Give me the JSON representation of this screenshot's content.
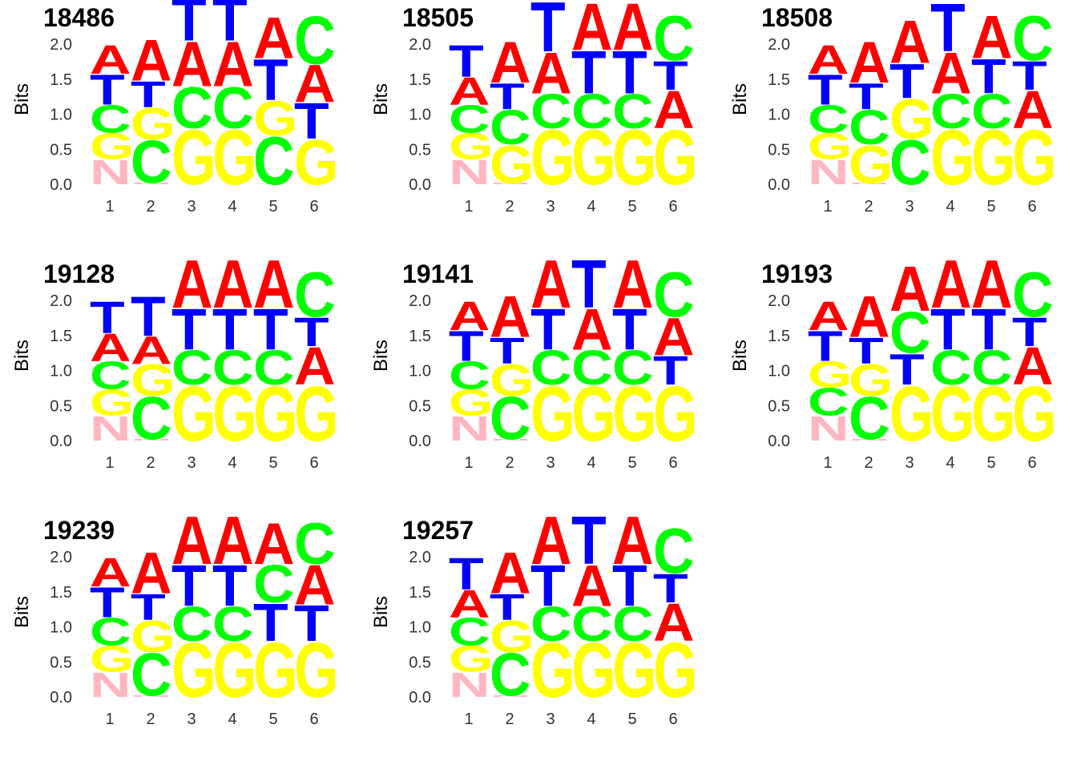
{
  "chart_data": [
    {
      "type": "sequence_logo",
      "title": "18486",
      "ylabel": "Bits",
      "ylim": [
        0,
        2
      ],
      "yticks": [
        "0.0",
        "0.5",
        "1.0",
        "1.5",
        "2.0"
      ],
      "xticks": [
        "1",
        "2",
        "3",
        "4",
        "5",
        "6"
      ],
      "positions": [
        [
          {
            "letter": "N",
            "bits": 0.36
          },
          {
            "letter": "G",
            "bits": 0.38
          },
          {
            "letter": "C",
            "bits": 0.4
          },
          {
            "letter": "T",
            "bits": 0.44
          },
          {
            "letter": "A",
            "bits": 0.42
          }
        ],
        [
          {
            "letter": "N",
            "bits": 0.02
          },
          {
            "letter": "C",
            "bits": 0.62
          },
          {
            "letter": "G",
            "bits": 0.46
          },
          {
            "letter": "T",
            "bits": 0.38
          },
          {
            "letter": "A",
            "bits": 0.6
          }
        ],
        [
          {
            "letter": "G",
            "bits": 0.8
          },
          {
            "letter": "C",
            "bits": 0.6
          },
          {
            "letter": "A",
            "bits": 0.65
          },
          {
            "letter": "T",
            "bits": 0.62
          }
        ],
        [
          {
            "letter": "G",
            "bits": 0.8
          },
          {
            "letter": "C",
            "bits": 0.6
          },
          {
            "letter": "A",
            "bits": 0.65
          },
          {
            "letter": "T",
            "bits": 0.62
          }
        ],
        [
          {
            "letter": "C",
            "bits": 0.7
          },
          {
            "letter": "G",
            "bits": 0.5
          },
          {
            "letter": "T",
            "bits": 0.6
          },
          {
            "letter": "A",
            "bits": 0.6
          }
        ],
        [
          {
            "letter": "G",
            "bits": 0.65
          },
          {
            "letter": "T",
            "bits": 0.52
          },
          {
            "letter": "A",
            "bits": 0.55
          },
          {
            "letter": "C",
            "bits": 0.7
          }
        ]
      ]
    },
    {
      "type": "sequence_logo",
      "title": "18505",
      "ylabel": "Bits",
      "ylim": [
        0,
        2
      ],
      "yticks": [
        "0.0",
        "0.5",
        "1.0",
        "1.5",
        "2.0"
      ],
      "xticks": [
        "1",
        "2",
        "3",
        "4",
        "5",
        "6"
      ],
      "positions": [
        [
          {
            "letter": "N",
            "bits": 0.36
          },
          {
            "letter": "G",
            "bits": 0.38
          },
          {
            "letter": "C",
            "bits": 0.4
          },
          {
            "letter": "A",
            "bits": 0.4
          },
          {
            "letter": "T",
            "bits": 0.46
          }
        ],
        [
          {
            "letter": "N",
            "bits": 0.02
          },
          {
            "letter": "G",
            "bits": 0.55
          },
          {
            "letter": "C",
            "bits": 0.5
          },
          {
            "letter": "T",
            "bits": 0.38
          },
          {
            "letter": "A",
            "bits": 0.6
          }
        ],
        [
          {
            "letter": "G",
            "bits": 0.8
          },
          {
            "letter": "C",
            "bits": 0.5
          },
          {
            "letter": "A",
            "bits": 0.6
          },
          {
            "letter": "T",
            "bits": 0.72
          }
        ],
        [
          {
            "letter": "G",
            "bits": 0.8
          },
          {
            "letter": "C",
            "bits": 0.5
          },
          {
            "letter": "T",
            "bits": 0.62
          },
          {
            "letter": "A",
            "bits": 0.68
          }
        ],
        [
          {
            "letter": "G",
            "bits": 0.8
          },
          {
            "letter": "C",
            "bits": 0.5
          },
          {
            "letter": "T",
            "bits": 0.62
          },
          {
            "letter": "A",
            "bits": 0.68
          }
        ],
        [
          {
            "letter": "G",
            "bits": 0.8
          },
          {
            "letter": "A",
            "bits": 0.55
          },
          {
            "letter": "T",
            "bits": 0.42
          },
          {
            "letter": "C",
            "bits": 0.65
          }
        ]
      ]
    },
    {
      "type": "sequence_logo",
      "title": "18508",
      "ylabel": "Bits",
      "ylim": [
        0,
        2
      ],
      "yticks": [
        "0.0",
        "0.5",
        "1.0",
        "1.5",
        "2.0"
      ],
      "xticks": [
        "1",
        "2",
        "3",
        "4",
        "5",
        "6"
      ],
      "positions": [
        [
          {
            "letter": "N",
            "bits": 0.36
          },
          {
            "letter": "G",
            "bits": 0.38
          },
          {
            "letter": "C",
            "bits": 0.4
          },
          {
            "letter": "T",
            "bits": 0.44
          },
          {
            "letter": "A",
            "bits": 0.42
          }
        ],
        [
          {
            "letter": "N",
            "bits": 0.02
          },
          {
            "letter": "G",
            "bits": 0.55
          },
          {
            "letter": "C",
            "bits": 0.5
          },
          {
            "letter": "T",
            "bits": 0.38
          },
          {
            "letter": "A",
            "bits": 0.6
          }
        ],
        [
          {
            "letter": "C",
            "bits": 0.65
          },
          {
            "letter": "G",
            "bits": 0.58
          },
          {
            "letter": "T",
            "bits": 0.5
          },
          {
            "letter": "A",
            "bits": 0.62
          }
        ],
        [
          {
            "letter": "G",
            "bits": 0.8
          },
          {
            "letter": "C",
            "bits": 0.5
          },
          {
            "letter": "A",
            "bits": 0.6
          },
          {
            "letter": "T",
            "bits": 0.7
          }
        ],
        [
          {
            "letter": "G",
            "bits": 0.8
          },
          {
            "letter": "C",
            "bits": 0.5
          },
          {
            "letter": "T",
            "bits": 0.5
          },
          {
            "letter": "A",
            "bits": 0.62
          }
        ],
        [
          {
            "letter": "G",
            "bits": 0.8
          },
          {
            "letter": "A",
            "bits": 0.55
          },
          {
            "letter": "T",
            "bits": 0.42
          },
          {
            "letter": "C",
            "bits": 0.65
          }
        ]
      ]
    },
    {
      "type": "sequence_logo",
      "title": "19128",
      "ylabel": "Bits",
      "ylim": [
        0,
        2
      ],
      "yticks": [
        "0.0",
        "0.5",
        "1.0",
        "1.5",
        "2.0"
      ],
      "xticks": [
        "1",
        "2",
        "3",
        "4",
        "5",
        "6"
      ],
      "positions": [
        [
          {
            "letter": "N",
            "bits": 0.36
          },
          {
            "letter": "G",
            "bits": 0.38
          },
          {
            "letter": "C",
            "bits": 0.4
          },
          {
            "letter": "A",
            "bits": 0.4
          },
          {
            "letter": "T",
            "bits": 0.46
          }
        ],
        [
          {
            "letter": "N",
            "bits": 0.02
          },
          {
            "letter": "C",
            "bits": 0.62
          },
          {
            "letter": "G",
            "bits": 0.46
          },
          {
            "letter": "A",
            "bits": 0.4
          },
          {
            "letter": "T",
            "bits": 0.58
          }
        ],
        [
          {
            "letter": "G",
            "bits": 0.8
          },
          {
            "letter": "C",
            "bits": 0.5
          },
          {
            "letter": "T",
            "bits": 0.6
          },
          {
            "letter": "A",
            "bits": 0.7
          }
        ],
        [
          {
            "letter": "G",
            "bits": 0.8
          },
          {
            "letter": "C",
            "bits": 0.5
          },
          {
            "letter": "T",
            "bits": 0.6
          },
          {
            "letter": "A",
            "bits": 0.7
          }
        ],
        [
          {
            "letter": "G",
            "bits": 0.8
          },
          {
            "letter": "C",
            "bits": 0.5
          },
          {
            "letter": "T",
            "bits": 0.6
          },
          {
            "letter": "A",
            "bits": 0.7
          }
        ],
        [
          {
            "letter": "G",
            "bits": 0.8
          },
          {
            "letter": "A",
            "bits": 0.55
          },
          {
            "letter": "T",
            "bits": 0.42
          },
          {
            "letter": "C",
            "bits": 0.65
          }
        ]
      ]
    },
    {
      "type": "sequence_logo",
      "title": "19141",
      "ylabel": "Bits",
      "ylim": [
        0,
        2
      ],
      "yticks": [
        "0.0",
        "0.5",
        "1.0",
        "1.5",
        "2.0"
      ],
      "xticks": [
        "1",
        "2",
        "3",
        "4",
        "5",
        "6"
      ],
      "positions": [
        [
          {
            "letter": "N",
            "bits": 0.36
          },
          {
            "letter": "G",
            "bits": 0.38
          },
          {
            "letter": "C",
            "bits": 0.4
          },
          {
            "letter": "T",
            "bits": 0.44
          },
          {
            "letter": "A",
            "bits": 0.42
          }
        ],
        [
          {
            "letter": "N",
            "bits": 0.02
          },
          {
            "letter": "C",
            "bits": 0.62
          },
          {
            "letter": "G",
            "bits": 0.46
          },
          {
            "letter": "T",
            "bits": 0.38
          },
          {
            "letter": "A",
            "bits": 0.6
          }
        ],
        [
          {
            "letter": "G",
            "bits": 0.8
          },
          {
            "letter": "C",
            "bits": 0.5
          },
          {
            "letter": "T",
            "bits": 0.6
          },
          {
            "letter": "A",
            "bits": 0.7
          }
        ],
        [
          {
            "letter": "G",
            "bits": 0.8
          },
          {
            "letter": "C",
            "bits": 0.5
          },
          {
            "letter": "A",
            "bits": 0.6
          },
          {
            "letter": "T",
            "bits": 0.7
          }
        ],
        [
          {
            "letter": "G",
            "bits": 0.8
          },
          {
            "letter": "C",
            "bits": 0.5
          },
          {
            "letter": "T",
            "bits": 0.6
          },
          {
            "letter": "A",
            "bits": 0.7
          }
        ],
        [
          {
            "letter": "G",
            "bits": 0.8
          },
          {
            "letter": "T",
            "bits": 0.42
          },
          {
            "letter": "A",
            "bits": 0.55
          },
          {
            "letter": "C",
            "bits": 0.65
          }
        ]
      ]
    },
    {
      "type": "sequence_logo",
      "title": "19193",
      "ylabel": "Bits",
      "ylim": [
        0,
        2
      ],
      "yticks": [
        "0.0",
        "0.5",
        "1.0",
        "1.5",
        "2.0"
      ],
      "xticks": [
        "1",
        "2",
        "3",
        "4",
        "5",
        "6"
      ],
      "positions": [
        [
          {
            "letter": "N",
            "bits": 0.36
          },
          {
            "letter": "C",
            "bits": 0.4
          },
          {
            "letter": "G",
            "bits": 0.38
          },
          {
            "letter": "T",
            "bits": 0.44
          },
          {
            "letter": "A",
            "bits": 0.42
          }
        ],
        [
          {
            "letter": "N",
            "bits": 0.02
          },
          {
            "letter": "C",
            "bits": 0.62
          },
          {
            "letter": "G",
            "bits": 0.46
          },
          {
            "letter": "T",
            "bits": 0.38
          },
          {
            "letter": "A",
            "bits": 0.6
          }
        ],
        [
          {
            "letter": "G",
            "bits": 0.8
          },
          {
            "letter": "T",
            "bits": 0.45
          },
          {
            "letter": "C",
            "bits": 0.6
          },
          {
            "letter": "A",
            "bits": 0.65
          }
        ],
        [
          {
            "letter": "G",
            "bits": 0.8
          },
          {
            "letter": "C",
            "bits": 0.5
          },
          {
            "letter": "T",
            "bits": 0.6
          },
          {
            "letter": "A",
            "bits": 0.7
          }
        ],
        [
          {
            "letter": "G",
            "bits": 0.8
          },
          {
            "letter": "C",
            "bits": 0.5
          },
          {
            "letter": "T",
            "bits": 0.6
          },
          {
            "letter": "A",
            "bits": 0.7
          }
        ],
        [
          {
            "letter": "G",
            "bits": 0.8
          },
          {
            "letter": "A",
            "bits": 0.55
          },
          {
            "letter": "T",
            "bits": 0.42
          },
          {
            "letter": "C",
            "bits": 0.65
          }
        ]
      ]
    },
    {
      "type": "sequence_logo",
      "title": "19239",
      "ylabel": "Bits",
      "ylim": [
        0,
        2
      ],
      "yticks": [
        "0.0",
        "0.5",
        "1.0",
        "1.5",
        "2.0"
      ],
      "xticks": [
        "1",
        "2",
        "3",
        "4",
        "5",
        "6"
      ],
      "positions": [
        [
          {
            "letter": "N",
            "bits": 0.36
          },
          {
            "letter": "G",
            "bits": 0.38
          },
          {
            "letter": "C",
            "bits": 0.4
          },
          {
            "letter": "T",
            "bits": 0.44
          },
          {
            "letter": "A",
            "bits": 0.42
          }
        ],
        [
          {
            "letter": "N",
            "bits": 0.02
          },
          {
            "letter": "C",
            "bits": 0.62
          },
          {
            "letter": "G",
            "bits": 0.46
          },
          {
            "letter": "T",
            "bits": 0.38
          },
          {
            "letter": "A",
            "bits": 0.6
          }
        ],
        [
          {
            "letter": "G",
            "bits": 0.8
          },
          {
            "letter": "C",
            "bits": 0.5
          },
          {
            "letter": "T",
            "bits": 0.6
          },
          {
            "letter": "A",
            "bits": 0.7
          }
        ],
        [
          {
            "letter": "G",
            "bits": 0.8
          },
          {
            "letter": "C",
            "bits": 0.5
          },
          {
            "letter": "T",
            "bits": 0.6
          },
          {
            "letter": "A",
            "bits": 0.7
          }
        ],
        [
          {
            "letter": "G",
            "bits": 0.8
          },
          {
            "letter": "T",
            "bits": 0.55
          },
          {
            "letter": "C",
            "bits": 0.55
          },
          {
            "letter": "A",
            "bits": 0.6
          }
        ],
        [
          {
            "letter": "G",
            "bits": 0.8
          },
          {
            "letter": "T",
            "bits": 0.52
          },
          {
            "letter": "A",
            "bits": 0.58
          },
          {
            "letter": "C",
            "bits": 0.6
          }
        ]
      ]
    },
    {
      "type": "sequence_logo",
      "title": "19257",
      "ylabel": "Bits",
      "ylim": [
        0,
        2
      ],
      "yticks": [
        "0.0",
        "0.5",
        "1.0",
        "1.5",
        "2.0"
      ],
      "xticks": [
        "1",
        "2",
        "3",
        "4",
        "5",
        "6"
      ],
      "positions": [
        [
          {
            "letter": "N",
            "bits": 0.36
          },
          {
            "letter": "G",
            "bits": 0.38
          },
          {
            "letter": "C",
            "bits": 0.4
          },
          {
            "letter": "A",
            "bits": 0.4
          },
          {
            "letter": "T",
            "bits": 0.46
          }
        ],
        [
          {
            "letter": "N",
            "bits": 0.02
          },
          {
            "letter": "C",
            "bits": 0.62
          },
          {
            "letter": "G",
            "bits": 0.46
          },
          {
            "letter": "T",
            "bits": 0.38
          },
          {
            "letter": "A",
            "bits": 0.6
          }
        ],
        [
          {
            "letter": "G",
            "bits": 0.8
          },
          {
            "letter": "C",
            "bits": 0.5
          },
          {
            "letter": "T",
            "bits": 0.6
          },
          {
            "letter": "A",
            "bits": 0.7
          }
        ],
        [
          {
            "letter": "G",
            "bits": 0.8
          },
          {
            "letter": "C",
            "bits": 0.5
          },
          {
            "letter": "A",
            "bits": 0.6
          },
          {
            "letter": "T",
            "bits": 0.7
          }
        ],
        [
          {
            "letter": "G",
            "bits": 0.8
          },
          {
            "letter": "C",
            "bits": 0.5
          },
          {
            "letter": "T",
            "bits": 0.6
          },
          {
            "letter": "A",
            "bits": 0.7
          }
        ],
        [
          {
            "letter": "G",
            "bits": 0.8
          },
          {
            "letter": "A",
            "bits": 0.55
          },
          {
            "letter": "T",
            "bits": 0.42
          },
          {
            "letter": "C",
            "bits": 0.65
          }
        ]
      ]
    }
  ],
  "colors": {
    "A": "#ff0000",
    "C": "#00ff00",
    "G": "#ffff00",
    "T": "#0000ff",
    "N": "#ffb6c1"
  }
}
